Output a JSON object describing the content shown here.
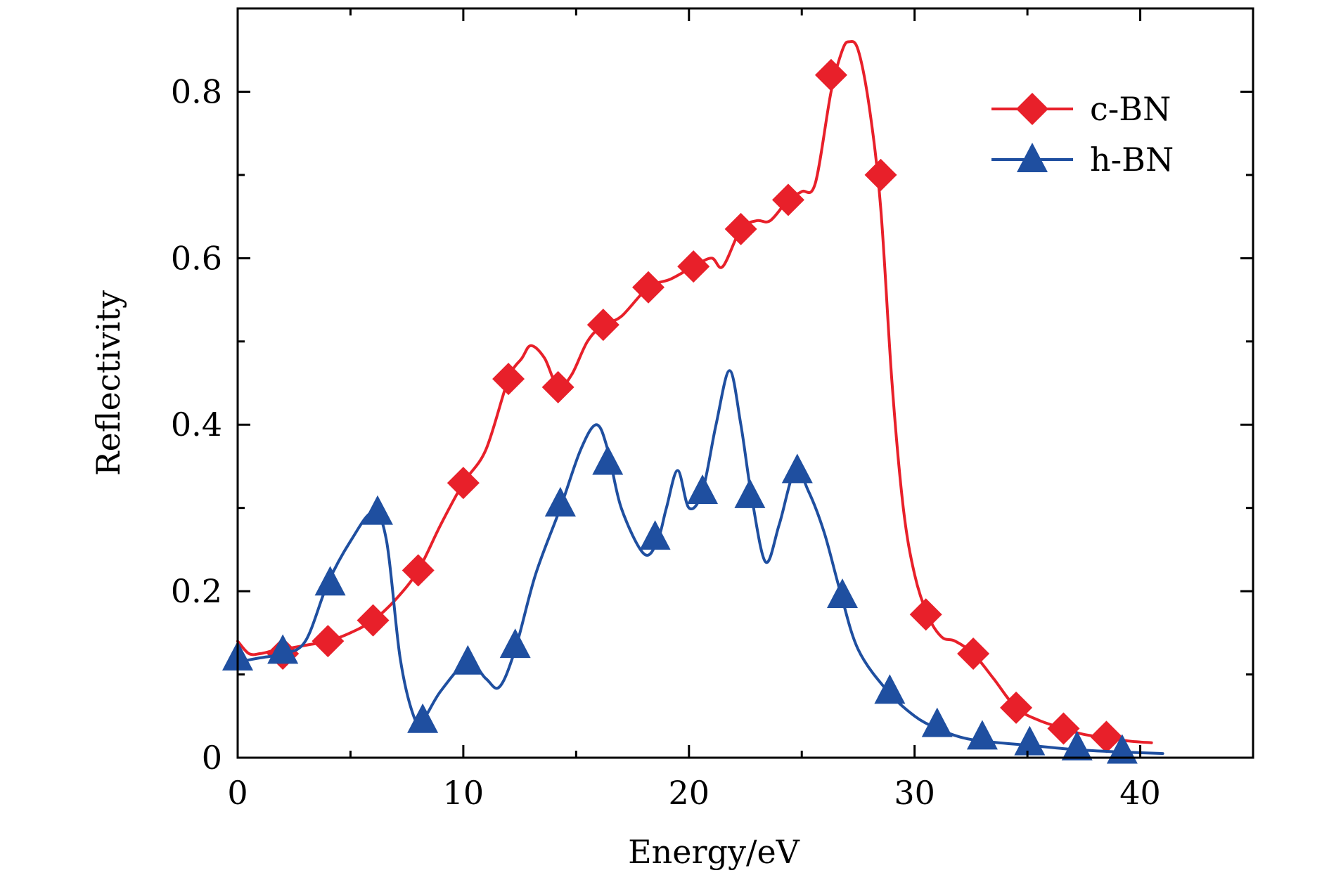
{
  "chart_data": {
    "type": "line",
    "xlabel": "Energy/eV",
    "ylabel": "Reflectivity",
    "xlim": [
      0,
      45
    ],
    "ylim": [
      0,
      0.9
    ],
    "x_ticks": [
      0,
      10,
      20,
      30,
      40
    ],
    "x_tick_labels": [
      "0",
      "10",
      "20",
      "30",
      "40"
    ],
    "y_ticks": [
      0,
      0.2,
      0.4,
      0.6,
      0.8
    ],
    "y_tick_labels": [
      "0",
      "0.2",
      "0.4",
      "0.6",
      "0.8"
    ],
    "legend_position": "top-right",
    "grid": false,
    "series": [
      {
        "name": "c-BN",
        "color": "#e8202a",
        "marker": "diamond",
        "x": [
          0,
          0.5,
          1.0,
          1.5,
          2.0,
          3.0,
          4.0,
          5.0,
          6.0,
          7.0,
          8.0,
          9.0,
          10.0,
          11.0,
          12.0,
          12.6,
          13.0,
          13.6,
          14.2,
          14.8,
          15.5,
          16.2,
          17.0,
          18.2,
          19.2,
          20.2,
          21.0,
          21.5,
          22.3,
          23.0,
          23.6,
          24.4,
          25.0,
          25.6,
          26.3,
          26.8,
          27.1,
          27.5,
          28.0,
          28.5,
          29.0,
          29.5,
          30.0,
          30.6,
          31.2,
          31.8,
          32.6,
          33.5,
          34.5,
          35.5,
          36.6,
          37.5,
          38.5,
          39.5,
          40.5
        ],
        "y": [
          0.14,
          0.125,
          0.125,
          0.128,
          0.13,
          0.135,
          0.14,
          0.15,
          0.165,
          0.19,
          0.225,
          0.28,
          0.33,
          0.37,
          0.455,
          0.48,
          0.495,
          0.48,
          0.445,
          0.46,
          0.5,
          0.52,
          0.53,
          0.565,
          0.575,
          0.59,
          0.6,
          0.59,
          0.635,
          0.645,
          0.645,
          0.67,
          0.68,
          0.69,
          0.8,
          0.85,
          0.86,
          0.85,
          0.78,
          0.66,
          0.45,
          0.3,
          0.22,
          0.17,
          0.145,
          0.14,
          0.125,
          0.095,
          0.06,
          0.045,
          0.035,
          0.028,
          0.024,
          0.02,
          0.018
        ],
        "marker_x": [
          2.0,
          4.0,
          6.0,
          8.0,
          10.0,
          12.0,
          14.2,
          16.2,
          18.2,
          20.2,
          22.3,
          24.4,
          26.3,
          28.5,
          30.5,
          32.6,
          34.5,
          36.6,
          38.5
        ],
        "marker_y": [
          0.125,
          0.14,
          0.165,
          0.225,
          0.33,
          0.455,
          0.445,
          0.52,
          0.565,
          0.59,
          0.635,
          0.67,
          0.82,
          0.7,
          0.172,
          0.125,
          0.06,
          0.035,
          0.025
        ]
      },
      {
        "name": "h-BN",
        "color": "#1f4fa0",
        "marker": "triangle",
        "x": [
          0,
          1.0,
          2.0,
          3.0,
          4.0,
          5.0,
          6.0,
          6.6,
          7.2,
          7.8,
          8.2,
          9.0,
          10.2,
          11.0,
          11.6,
          12.3,
          13.2,
          14.3,
          15.2,
          15.9,
          16.4,
          17.0,
          18.0,
          18.6,
          19.0,
          19.5,
          20.0,
          20.6,
          21.2,
          21.8,
          22.3,
          22.8,
          23.4,
          24.0,
          24.7,
          25.3,
          26.0,
          26.7,
          27.5,
          28.8,
          30.0,
          31.0,
          32.0,
          33.0,
          35.0,
          37.0,
          39.0,
          41.0
        ],
        "y": [
          0.115,
          0.12,
          0.125,
          0.14,
          0.21,
          0.26,
          0.295,
          0.26,
          0.12,
          0.05,
          0.045,
          0.08,
          0.115,
          0.095,
          0.085,
          0.13,
          0.22,
          0.3,
          0.37,
          0.4,
          0.37,
          0.3,
          0.245,
          0.26,
          0.3,
          0.345,
          0.3,
          0.32,
          0.4,
          0.465,
          0.4,
          0.31,
          0.235,
          0.28,
          0.345,
          0.32,
          0.27,
          0.2,
          0.13,
          0.08,
          0.05,
          0.035,
          0.025,
          0.02,
          0.015,
          0.01,
          0.007,
          0.005
        ],
        "marker_x": [
          0,
          2.0,
          4.1,
          6.2,
          8.2,
          10.2,
          12.3,
          14.3,
          16.4,
          18.5,
          20.6,
          22.7,
          24.8,
          26.8,
          28.9,
          31.0,
          33.0,
          35.1,
          37.2,
          39.2
        ],
        "marker_y": [
          0.12,
          0.128,
          0.21,
          0.295,
          0.045,
          0.115,
          0.135,
          0.305,
          0.355,
          0.265,
          0.32,
          0.315,
          0.345,
          0.195,
          0.08,
          0.04,
          0.025,
          0.018,
          0.012,
          0.008
        ]
      }
    ]
  }
}
